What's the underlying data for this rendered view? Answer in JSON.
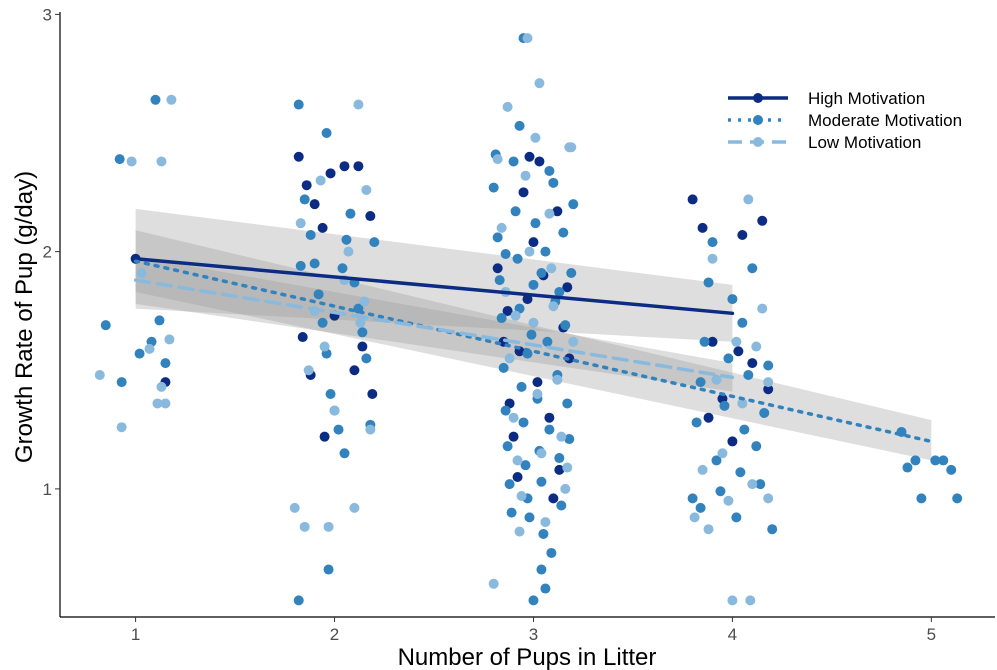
{
  "chart_data": {
    "type": "scatter",
    "title": "",
    "xlabel": "Number of Pups in Litter",
    "ylabel": "Growth Rate of Pup (g/day)",
    "xlim": [
      0.62,
      5.32
    ],
    "ylim": [
      0.46,
      3.01
    ],
    "x_ticks": [
      1,
      2,
      3,
      4,
      5
    ],
    "y_ticks": [
      1,
      2,
      3
    ],
    "grid": false,
    "legend_position": "top-right",
    "series": [
      {
        "name": "High Motivation",
        "color": "#0c2c84",
        "line_style": "solid",
        "fit": {
          "x": [
            1,
            4
          ],
          "y": [
            1.97,
            1.74
          ],
          "ci_low": [
            1.76,
            1.62
          ],
          "ci_high": [
            2.18,
            1.86
          ]
        },
        "points": [
          [
            1.0,
            1.97
          ],
          [
            1.15,
            1.45
          ],
          [
            1.82,
            2.4
          ],
          [
            1.86,
            2.28
          ],
          [
            1.9,
            2.2
          ],
          [
            1.94,
            2.1
          ],
          [
            1.98,
            2.33
          ],
          [
            2.05,
            2.36
          ],
          [
            2.12,
            2.36
          ],
          [
            2.18,
            2.15
          ],
          [
            1.84,
            1.64
          ],
          [
            1.88,
            1.48
          ],
          [
            1.95,
            1.22
          ],
          [
            2.1,
            1.5
          ],
          [
            2.14,
            1.6
          ],
          [
            2.19,
            1.4
          ],
          [
            2.0,
            1.73
          ],
          [
            2.82,
            1.93
          ],
          [
            2.85,
            1.62
          ],
          [
            2.88,
            1.36
          ],
          [
            2.9,
            1.22
          ],
          [
            2.92,
            1.05
          ],
          [
            2.95,
            2.25
          ],
          [
            2.97,
            1.8
          ],
          [
            3.0,
            2.04
          ],
          [
            3.02,
            1.45
          ],
          [
            3.05,
            1.9
          ],
          [
            3.08,
            1.3
          ],
          [
            3.1,
            0.96
          ],
          [
            3.12,
            2.17
          ],
          [
            3.15,
            1.68
          ],
          [
            3.18,
            1.55
          ],
          [
            2.87,
            1.75
          ],
          [
            2.93,
            1.58
          ],
          [
            3.03,
            2.38
          ],
          [
            3.13,
            1.08
          ],
          [
            2.98,
            2.4
          ],
          [
            3.17,
            1.85
          ],
          [
            3.8,
            2.22
          ],
          [
            3.85,
            2.1
          ],
          [
            3.9,
            1.62
          ],
          [
            3.95,
            1.38
          ],
          [
            4.0,
            1.2
          ],
          [
            4.05,
            2.07
          ],
          [
            4.1,
            1.53
          ],
          [
            4.15,
            2.13
          ],
          [
            4.18,
            1.42
          ],
          [
            4.03,
            1.58
          ],
          [
            3.88,
            1.3
          ]
        ]
      },
      {
        "name": "Moderate Motivation",
        "color": "#3182bd",
        "line_style": "dotted",
        "fit": {
          "x": [
            1,
            5
          ],
          "y": [
            1.96,
            1.2
          ],
          "ci_low": [
            1.83,
            1.12
          ],
          "ci_high": [
            2.09,
            1.29
          ]
        },
        "points": [
          [
            0.85,
            1.69
          ],
          [
            0.93,
            1.45
          ],
          [
            0.92,
            2.39
          ],
          [
            1.02,
            1.57
          ],
          [
            1.08,
            1.62
          ],
          [
            1.12,
            1.71
          ],
          [
            1.15,
            1.53
          ],
          [
            1.1,
            2.64
          ],
          [
            1.82,
            2.62
          ],
          [
            1.85,
            2.22
          ],
          [
            1.88,
            2.07
          ],
          [
            1.9,
            1.95
          ],
          [
            1.92,
            1.82
          ],
          [
            1.94,
            1.7
          ],
          [
            1.96,
            1.57
          ],
          [
            1.98,
            1.4
          ],
          [
            2.0,
            1.33
          ],
          [
            2.02,
            1.25
          ],
          [
            2.04,
            1.93
          ],
          [
            2.06,
            2.05
          ],
          [
            2.08,
            2.16
          ],
          [
            2.1,
            1.87
          ],
          [
            2.12,
            1.76
          ],
          [
            2.14,
            1.66
          ],
          [
            2.16,
            1.55
          ],
          [
            2.18,
            1.27
          ],
          [
            1.83,
            1.94
          ],
          [
            1.96,
            2.5
          ],
          [
            2.05,
            1.15
          ],
          [
            1.97,
            0.66
          ],
          [
            1.82,
            0.53
          ],
          [
            2.2,
            2.04
          ],
          [
            2.8,
            2.27
          ],
          [
            2.82,
            2.06
          ],
          [
            2.83,
            1.88
          ],
          [
            2.84,
            1.72
          ],
          [
            2.85,
            1.51
          ],
          [
            2.86,
            1.33
          ],
          [
            2.87,
            1.18
          ],
          [
            2.88,
            1.02
          ],
          [
            2.89,
            0.9
          ],
          [
            2.9,
            2.38
          ],
          [
            2.91,
            2.17
          ],
          [
            2.92,
            1.97
          ],
          [
            2.93,
            1.76
          ],
          [
            2.94,
            1.43
          ],
          [
            2.95,
            1.28
          ],
          [
            2.96,
            1.1
          ],
          [
            2.97,
            0.96
          ],
          [
            2.98,
            0.88
          ],
          [
            2.99,
            1.65
          ],
          [
            3.0,
            1.86
          ],
          [
            3.01,
            2.12
          ],
          [
            3.02,
            1.38
          ],
          [
            3.03,
            1.16
          ],
          [
            3.04,
            1.03
          ],
          [
            3.05,
            0.81
          ],
          [
            3.06,
            2.0
          ],
          [
            3.07,
            1.62
          ],
          [
            3.08,
            1.25
          ],
          [
            3.09,
            0.73
          ],
          [
            3.1,
            2.29
          ],
          [
            3.11,
            1.79
          ],
          [
            3.12,
            1.48
          ],
          [
            3.13,
            1.13
          ],
          [
            3.14,
            0.93
          ],
          [
            3.15,
            2.08
          ],
          [
            3.16,
            1.69
          ],
          [
            3.17,
            1.36
          ],
          [
            3.18,
            1.21
          ],
          [
            3.19,
            1.91
          ],
          [
            3.2,
            2.2
          ],
          [
            3.0,
            0.53
          ],
          [
            3.04,
            0.66
          ],
          [
            3.06,
            0.58
          ],
          [
            2.93,
            2.53
          ],
          [
            3.08,
            2.34
          ],
          [
            2.95,
            2.9
          ],
          [
            2.81,
            2.41
          ],
          [
            2.97,
            1.57
          ],
          [
            3.04,
            1.91
          ],
          [
            2.86,
            1.99
          ],
          [
            3.13,
            1.83
          ],
          [
            3.8,
            0.96
          ],
          [
            3.82,
            1.28
          ],
          [
            3.84,
            1.45
          ],
          [
            3.86,
            1.62
          ],
          [
            3.88,
            1.87
          ],
          [
            3.9,
            2.04
          ],
          [
            3.92,
            1.12
          ],
          [
            3.94,
            0.99
          ],
          [
            3.96,
            1.35
          ],
          [
            3.98,
            1.55
          ],
          [
            4.0,
            1.8
          ],
          [
            4.02,
            0.88
          ],
          [
            4.04,
            1.07
          ],
          [
            4.06,
            1.25
          ],
          [
            4.08,
            1.48
          ],
          [
            4.1,
            1.93
          ],
          [
            4.12,
            1.18
          ],
          [
            4.14,
            1.02
          ],
          [
            4.16,
            1.32
          ],
          [
            4.18,
            1.52
          ],
          [
            4.2,
            0.83
          ],
          [
            3.84,
            0.92
          ],
          [
            4.05,
            1.7
          ],
          [
            4.85,
            1.24
          ],
          [
            4.88,
            1.09
          ],
          [
            4.92,
            1.12
          ],
          [
            4.95,
            0.96
          ],
          [
            5.02,
            1.12
          ],
          [
            5.06,
            1.12
          ],
          [
            5.1,
            1.08
          ],
          [
            5.13,
            0.96
          ]
        ]
      },
      {
        "name": "Low Motivation",
        "color": "#8ab9de",
        "line_style": "dashed",
        "fit": {
          "x": [
            1,
            4
          ],
          "y": [
            1.88,
            1.47
          ],
          "ci_low": [
            1.78,
            1.41
          ],
          "ci_high": [
            1.98,
            1.53
          ]
        },
        "points": [
          [
            0.82,
            1.48
          ],
          [
            0.93,
            1.26
          ],
          [
            0.98,
            2.38
          ],
          [
            1.03,
            1.91
          ],
          [
            1.07,
            1.59
          ],
          [
            1.13,
            1.43
          ],
          [
            1.13,
            2.38
          ],
          [
            1.15,
            1.36
          ],
          [
            1.18,
            2.64
          ],
          [
            1.17,
            1.63
          ],
          [
            1.11,
            1.36
          ],
          [
            1.8,
            0.92
          ],
          [
            1.85,
            0.84
          ],
          [
            1.9,
            1.75
          ],
          [
            1.95,
            1.6
          ],
          [
            2.0,
            1.33
          ],
          [
            2.05,
            1.88
          ],
          [
            2.1,
            0.92
          ],
          [
            2.12,
            2.62
          ],
          [
            2.15,
            1.79
          ],
          [
            2.18,
            1.25
          ],
          [
            1.83,
            2.12
          ],
          [
            1.93,
            2.3
          ],
          [
            1.97,
            0.84
          ],
          [
            2.07,
            2.0
          ],
          [
            2.16,
            2.26
          ],
          [
            1.87,
            1.5
          ],
          [
            2.13,
            1.7
          ],
          [
            2.8,
            0.6
          ],
          [
            2.82,
            2.39
          ],
          [
            2.84,
            2.1
          ],
          [
            2.86,
            1.83
          ],
          [
            2.88,
            1.55
          ],
          [
            2.9,
            1.3
          ],
          [
            2.92,
            1.12
          ],
          [
            2.94,
            0.97
          ],
          [
            2.96,
            2.32
          ],
          [
            2.98,
            2.0
          ],
          [
            3.0,
            1.7
          ],
          [
            3.02,
            1.4
          ],
          [
            3.04,
            1.15
          ],
          [
            3.06,
            0.86
          ],
          [
            3.08,
            2.16
          ],
          [
            3.1,
            1.77
          ],
          [
            3.12,
            1.46
          ],
          [
            3.14,
            1.22
          ],
          [
            3.16,
            1.0
          ],
          [
            3.18,
            2.44
          ],
          [
            3.2,
            1.62
          ],
          [
            2.87,
            2.61
          ],
          [
            2.93,
            0.82
          ],
          [
            3.03,
            2.71
          ],
          [
            2.97,
            2.9
          ],
          [
            3.17,
            1.09
          ],
          [
            2.91,
            1.73
          ],
          [
            3.09,
            1.93
          ],
          [
            3.01,
            2.48
          ],
          [
            3.19,
            2.44
          ],
          [
            3.81,
            0.88
          ],
          [
            3.85,
            1.08
          ],
          [
            3.88,
            0.83
          ],
          [
            3.92,
            1.46
          ],
          [
            3.95,
            1.15
          ],
          [
            3.98,
            0.95
          ],
          [
            4.0,
            0.53
          ],
          [
            4.02,
            1.62
          ],
          [
            4.05,
            1.36
          ],
          [
            4.08,
            2.22
          ],
          [
            4.1,
            1.02
          ],
          [
            4.12,
            1.6
          ],
          [
            4.15,
            1.76
          ],
          [
            4.18,
            0.96
          ],
          [
            4.18,
            1.45
          ],
          [
            4.09,
            0.53
          ],
          [
            3.9,
            1.97
          ]
        ]
      }
    ]
  }
}
